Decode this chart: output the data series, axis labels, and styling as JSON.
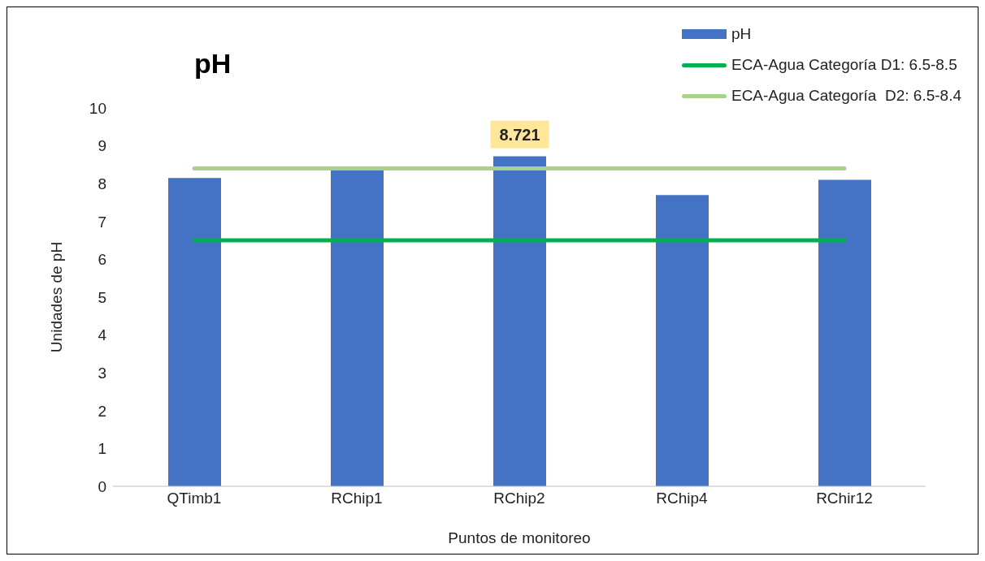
{
  "chart_data": {
    "type": "bar",
    "title": "pH",
    "xlabel": "Puntos de monitoreo",
    "ylabel": "Unidades de pH",
    "categories": [
      "QTimb1",
      "RChip1",
      "RChip2",
      "RChip4",
      "RChir12"
    ],
    "series": [
      {
        "name": "pH",
        "color": "#4472c4",
        "values": [
          8.15,
          8.35,
          8.721,
          7.7,
          8.1
        ],
        "value_labels": [
          null,
          null,
          "8.721",
          null,
          null
        ]
      },
      {
        "name": "ECA-Agua Categoría D1: 6.5-8.5",
        "type": "line",
        "color": "#00b050",
        "values": [
          6.5,
          6.5,
          6.5,
          6.5,
          6.5
        ]
      },
      {
        "name": "ECA-Agua Categoría  D2: 6.5-8.4",
        "type": "line",
        "color": "#a9d18e",
        "values": [
          8.4,
          8.4,
          8.4,
          8.4,
          8.4
        ]
      }
    ],
    "ylim": [
      0,
      10
    ],
    "yticks": [
      0,
      1,
      2,
      3,
      4,
      5,
      6,
      7,
      8,
      9,
      10
    ],
    "grid": false,
    "legend": "top right",
    "marker": "none"
  }
}
